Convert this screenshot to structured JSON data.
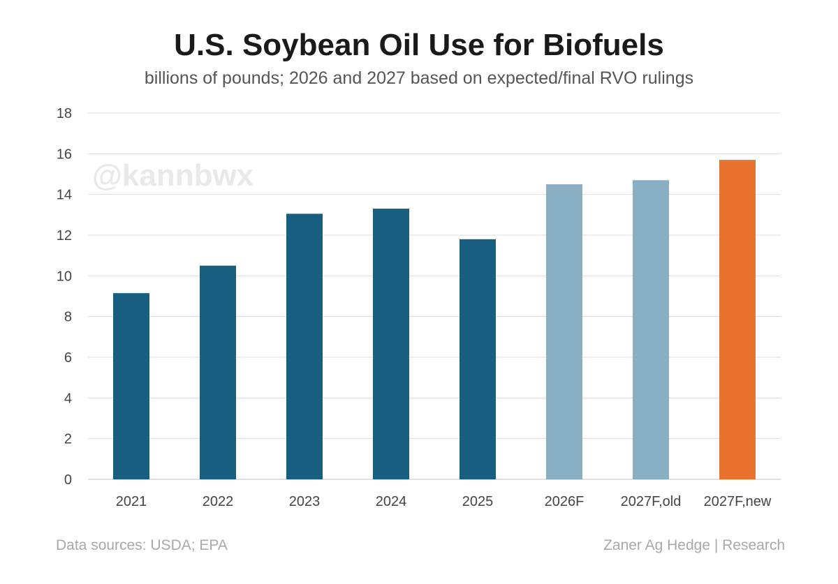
{
  "chart_data": {
    "type": "bar",
    "title": "U.S. Soybean Oil Use for Biofuels",
    "subtitle": "billions of pounds; 2026 and 2027 based on expected/final RVO rulings",
    "categories": [
      "2021",
      "2022",
      "2023",
      "2024",
      "2025",
      "2026F",
      "2027F,old",
      "2027F,new"
    ],
    "values": [
      9.15,
      10.5,
      13.05,
      13.3,
      11.8,
      14.5,
      14.7,
      15.7
    ],
    "bar_colors": [
      "#175e80",
      "#175e80",
      "#175e80",
      "#175e80",
      "#175e80",
      "#8aaec2",
      "#8aaec2",
      "#e87230"
    ],
    "ylim": [
      0,
      18
    ],
    "yticks": [
      0,
      2,
      4,
      6,
      8,
      10,
      12,
      14,
      16,
      18
    ],
    "xlabel": "",
    "ylabel": "",
    "grid": true
  },
  "watermark": "@kannbwx",
  "footer": {
    "sources": "Data sources: USDA; EPA",
    "credit": "Zaner Ag Hedge | Research"
  },
  "colors": {
    "historical": "#175e80",
    "forecast": "#8aaec2",
    "highlight": "#e87230",
    "grid": "#dddddd"
  }
}
